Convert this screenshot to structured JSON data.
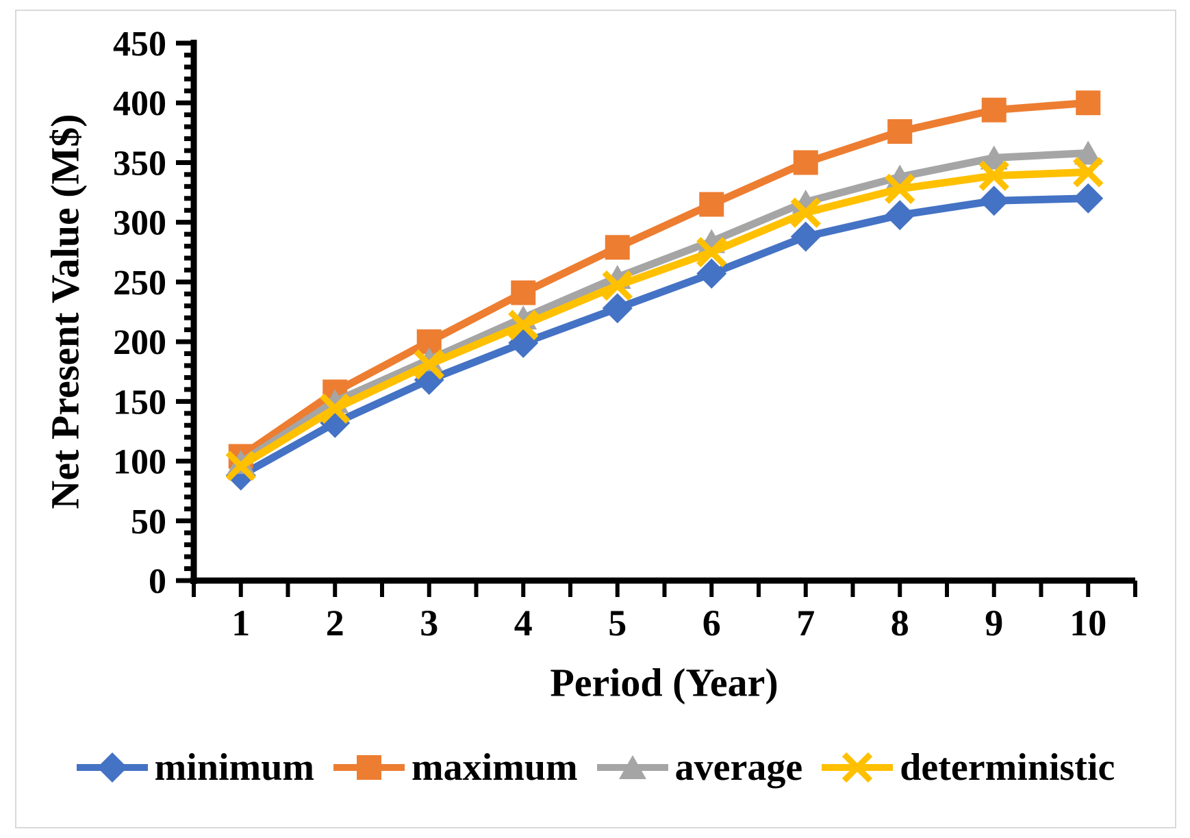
{
  "frame": {
    "border_color": "#d9d9d9",
    "background": "#ffffff"
  },
  "axis": {
    "x_title": "Period (Year)",
    "y_title": "Net Present Value (M$)",
    "y_tick_labels": [
      "0",
      "50",
      "100",
      "150",
      "200",
      "250",
      "300",
      "350",
      "400",
      "450"
    ],
    "x_tick_labels": [
      "1",
      "2",
      "3",
      "4",
      "5",
      "6",
      "7",
      "8",
      "9",
      "10"
    ]
  },
  "chart_data": {
    "type": "line",
    "title": "",
    "xlabel": "Period (Year)",
    "ylabel": "Net Present Value (M$)",
    "categories": [
      1,
      2,
      3,
      4,
      5,
      6,
      7,
      8,
      9,
      10
    ],
    "ylim": [
      0,
      450
    ],
    "y_major_step": 50,
    "y_minor_step": 10,
    "grid": false,
    "legend_position": "bottom",
    "series": [
      {
        "name": "minimum",
        "marker": "diamond",
        "color": "#4472C4",
        "values": [
          88,
          132,
          168,
          199,
          228,
          257,
          288,
          306,
          318,
          320
        ]
      },
      {
        "name": "maximum",
        "marker": "square",
        "color": "#ED7D31",
        "values": [
          104,
          158,
          200,
          241,
          279,
          315,
          350,
          376,
          394,
          400
        ]
      },
      {
        "name": "average",
        "marker": "triangle",
        "color": "#A5A5A5",
        "values": [
          99,
          150,
          185,
          220,
          254,
          284,
          317,
          338,
          354,
          358
        ]
      },
      {
        "name": "deterministic",
        "marker": "x",
        "color": "#FFC000",
        "values": [
          96,
          144,
          181,
          214,
          247,
          275,
          308,
          328,
          339,
          342
        ]
      }
    ]
  }
}
